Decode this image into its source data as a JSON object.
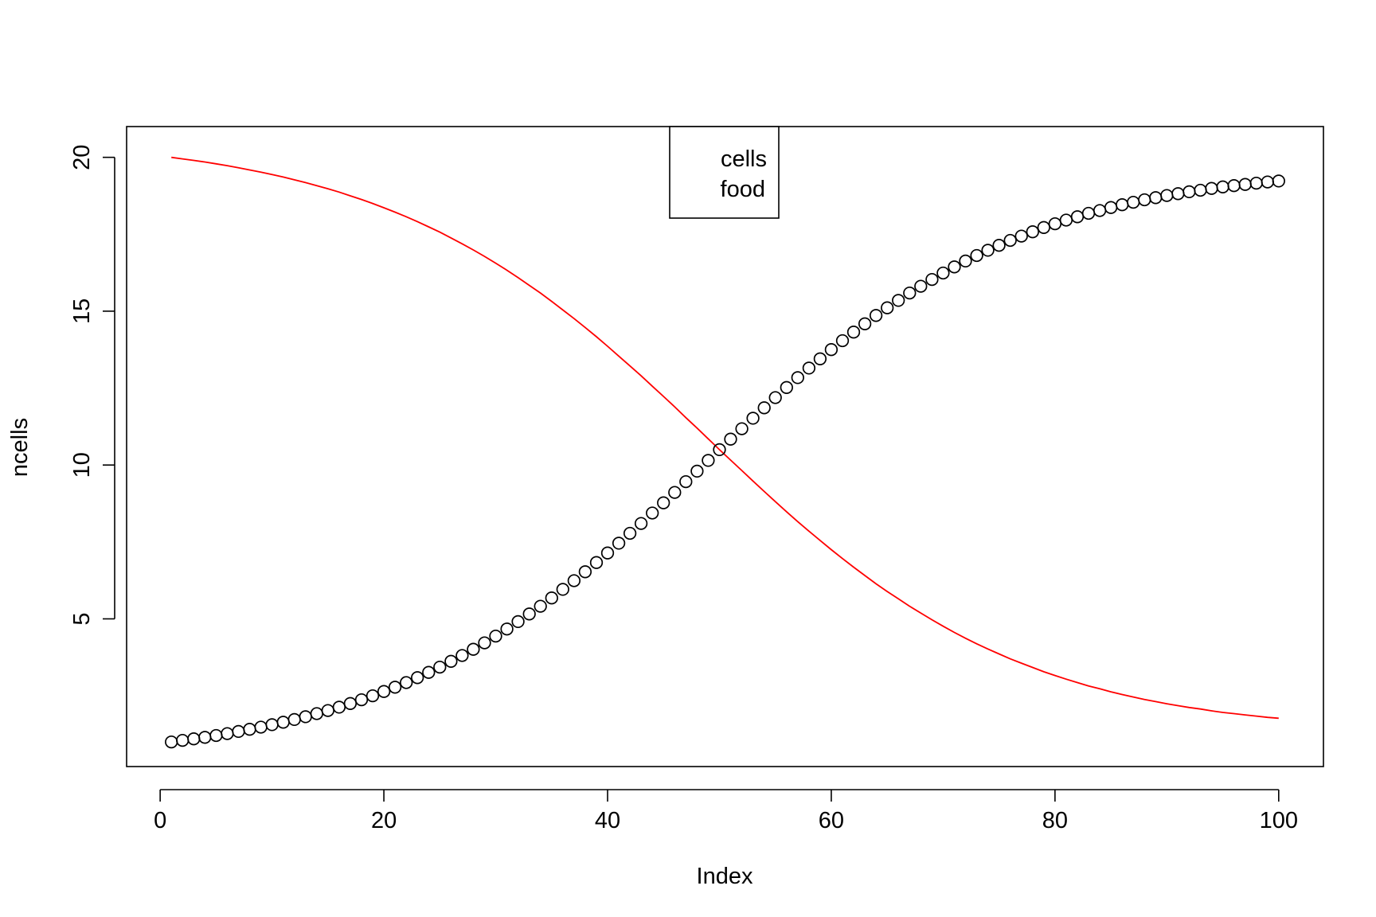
{
  "chart_data": {
    "type": "scatter",
    "xlabel": "Index",
    "ylabel": "ncells",
    "xlim": [
      -3.0,
      104.0
    ],
    "ylim": [
      0.2,
      21.0
    ],
    "x_ticks": [
      "0",
      "20",
      "40",
      "60",
      "80",
      "100"
    ],
    "y_ticks": [
      "5",
      "10",
      "15",
      "20"
    ],
    "grid": false,
    "legend": {
      "placement": "top-center",
      "entries": [
        "cells",
        "food"
      ]
    },
    "series": [
      {
        "name": "cells",
        "style": "points",
        "marker": "open-circle",
        "color": "#000000",
        "x": [
          1,
          2,
          3,
          4,
          5,
          6,
          7,
          8,
          9,
          10,
          11,
          12,
          13,
          14,
          15,
          16,
          17,
          18,
          19,
          20,
          21,
          22,
          23,
          24,
          25,
          26,
          27,
          28,
          29,
          30,
          31,
          32,
          33,
          34,
          35,
          36,
          37,
          38,
          39,
          40,
          41,
          42,
          43,
          44,
          45,
          46,
          47,
          48,
          49,
          50,
          51,
          52,
          53,
          54,
          55,
          56,
          57,
          58,
          59,
          60,
          61,
          62,
          63,
          64,
          65,
          66,
          67,
          68,
          69,
          70,
          71,
          72,
          73,
          74,
          75,
          76,
          77,
          78,
          79,
          80,
          81,
          82,
          83,
          84,
          85,
          86,
          87,
          88,
          89,
          90,
          91,
          92,
          93,
          94,
          95,
          96,
          97,
          98,
          99,
          100
        ],
        "values": [
          1.0,
          1.05,
          1.1,
          1.15,
          1.21,
          1.27,
          1.34,
          1.41,
          1.48,
          1.56,
          1.64,
          1.73,
          1.82,
          1.92,
          2.02,
          2.13,
          2.25,
          2.37,
          2.5,
          2.64,
          2.78,
          2.93,
          3.09,
          3.26,
          3.43,
          3.62,
          3.81,
          4.01,
          4.22,
          4.44,
          4.67,
          4.91,
          5.16,
          5.41,
          5.68,
          5.96,
          6.24,
          6.53,
          6.83,
          7.14,
          7.46,
          7.78,
          8.1,
          8.44,
          8.77,
          9.11,
          9.46,
          9.8,
          10.15,
          10.5,
          10.84,
          11.18,
          11.52,
          11.86,
          12.19,
          12.52,
          12.84,
          13.15,
          13.45,
          13.75,
          14.04,
          14.32,
          14.59,
          14.86,
          15.11,
          15.35,
          15.59,
          15.81,
          16.03,
          16.24,
          16.44,
          16.63,
          16.81,
          16.98,
          17.14,
          17.3,
          17.44,
          17.58,
          17.72,
          17.84,
          17.96,
          18.07,
          18.18,
          18.27,
          18.37,
          18.46,
          18.54,
          18.62,
          18.69,
          18.76,
          18.82,
          18.88,
          18.93,
          18.99,
          19.04,
          19.08,
          19.12,
          19.16,
          19.2,
          19.23
        ]
      },
      {
        "name": "food",
        "style": "line",
        "color": "#ff0000",
        "x": [
          1,
          2,
          3,
          4,
          5,
          6,
          7,
          8,
          9,
          10,
          11,
          12,
          13,
          14,
          15,
          16,
          17,
          18,
          19,
          20,
          21,
          22,
          23,
          24,
          25,
          26,
          27,
          28,
          29,
          30,
          31,
          32,
          33,
          34,
          35,
          36,
          37,
          38,
          39,
          40,
          41,
          42,
          43,
          44,
          45,
          46,
          47,
          48,
          49,
          50,
          51,
          52,
          53,
          54,
          55,
          56,
          57,
          58,
          59,
          60,
          61,
          62,
          63,
          64,
          65,
          66,
          67,
          68,
          69,
          70,
          71,
          72,
          73,
          74,
          75,
          76,
          77,
          78,
          79,
          80,
          81,
          82,
          83,
          84,
          85,
          86,
          87,
          88,
          89,
          90,
          91,
          92,
          93,
          94,
          95,
          96,
          97,
          98,
          99,
          100
        ],
        "values": [
          20.0,
          19.95,
          19.9,
          19.85,
          19.79,
          19.73,
          19.66,
          19.59,
          19.52,
          19.44,
          19.36,
          19.27,
          19.18,
          19.08,
          18.98,
          18.87,
          18.75,
          18.63,
          18.5,
          18.36,
          18.22,
          18.07,
          17.91,
          17.74,
          17.57,
          17.38,
          17.19,
          16.99,
          16.78,
          16.56,
          16.33,
          16.09,
          15.84,
          15.59,
          15.32,
          15.04,
          14.76,
          14.47,
          14.17,
          13.86,
          13.54,
          13.22,
          12.9,
          12.56,
          12.23,
          11.89,
          11.54,
          11.2,
          10.85,
          10.5,
          10.16,
          9.82,
          9.48,
          9.14,
          8.81,
          8.48,
          8.16,
          7.85,
          7.55,
          7.25,
          6.96,
          6.68,
          6.41,
          6.14,
          5.89,
          5.65,
          5.41,
          5.19,
          4.97,
          4.76,
          4.56,
          4.37,
          4.19,
          4.02,
          3.86,
          3.7,
          3.56,
          3.42,
          3.28,
          3.16,
          3.04,
          2.93,
          2.82,
          2.73,
          2.63,
          2.54,
          2.46,
          2.38,
          2.31,
          2.24,
          2.18,
          2.12,
          2.07,
          2.01,
          1.96,
          1.92,
          1.88,
          1.84,
          1.8,
          1.77
        ]
      }
    ]
  }
}
